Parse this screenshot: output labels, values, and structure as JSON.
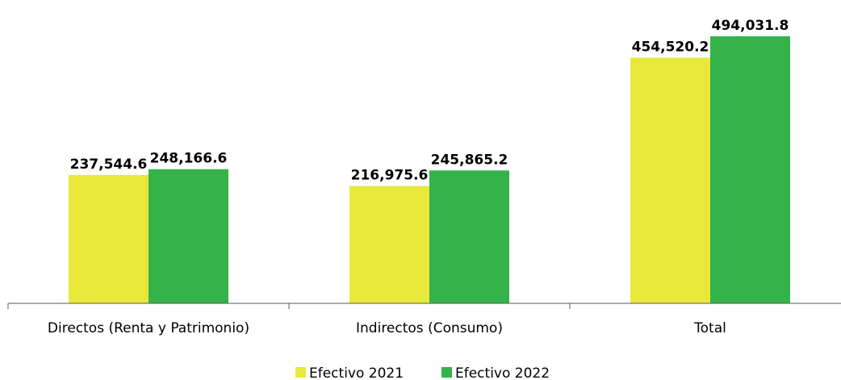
{
  "chart_data": {
    "type": "bar",
    "categories": [
      "Directos (Renta y Patrimonio)",
      "Indirectos (Consumo)",
      "Total"
    ],
    "series": [
      {
        "name": "Efectivo 2021",
        "color": "#e8e83a",
        "values": [
          237544.6,
          216975.6,
          454520.2
        ],
        "labels": [
          "237,544.6",
          "216,975.6",
          "454,520.2"
        ]
      },
      {
        "name": "Efectivo 2022",
        "color": "#34b34a",
        "values": [
          248166.6,
          245865.2,
          494031.8
        ],
        "labels": [
          "248,166.6",
          "245,865.2",
          "494,031.8"
        ]
      }
    ],
    "title": "",
    "xlabel": "",
    "ylabel": "",
    "ylim": [
      0,
      525000
    ],
    "grid": false,
    "legend": "bottom-center",
    "axis_color": "#595959"
  }
}
